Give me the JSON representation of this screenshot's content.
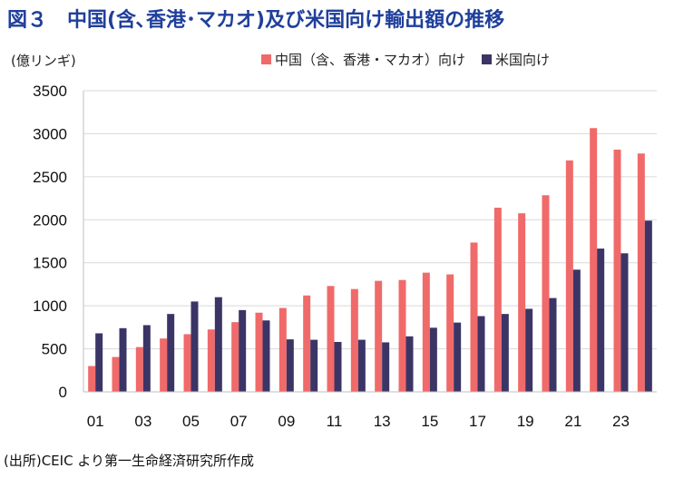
{
  "title": "図３　中国(含､香港･マカオ)及び米国向け輸出額の推移",
  "unit_label": "(億リンギ)",
  "source": "(出所)CEIC より第一生命経済研究所作成",
  "colors": {
    "china": "#f06a6a",
    "usa": "#3b3566"
  },
  "chart_data": {
    "type": "bar",
    "title": "図３　中国(含､香港･マカオ)及び米国向け輸出額の推移",
    "ylabel": "(億リンギ)",
    "ylim": [
      0,
      3500
    ],
    "yticks": [
      0,
      500,
      1000,
      1500,
      2000,
      2500,
      3000,
      3500
    ],
    "categories": [
      "01",
      "02",
      "03",
      "04",
      "05",
      "06",
      "07",
      "08",
      "09",
      "10",
      "11",
      "12",
      "13",
      "14",
      "15",
      "16",
      "17",
      "18",
      "19",
      "20",
      "21",
      "22",
      "23",
      "24"
    ],
    "xtick_labels": [
      "01",
      "",
      "03",
      "",
      "05",
      "",
      "07",
      "",
      "09",
      "",
      "11",
      "",
      "13",
      "",
      "15",
      "",
      "17",
      "",
      "19",
      "",
      "21",
      "",
      "23",
      ""
    ],
    "legend_position": "top-right",
    "grid": true,
    "series": [
      {
        "name": "中国（含、香港・マカオ）向け",
        "values": [
          300,
          405,
          520,
          620,
          670,
          725,
          810,
          920,
          975,
          1120,
          1230,
          1195,
          1290,
          1300,
          1385,
          1365,
          1735,
          2140,
          2075,
          2285,
          2690,
          3065,
          2815,
          2770
        ]
      },
      {
        "name": "米国向け",
        "values": [
          680,
          740,
          775,
          905,
          1050,
          1100,
          950,
          830,
          610,
          605,
          580,
          605,
          575,
          645,
          745,
          805,
          880,
          905,
          965,
          1090,
          1420,
          1665,
          1610,
          1990
        ]
      }
    ]
  }
}
